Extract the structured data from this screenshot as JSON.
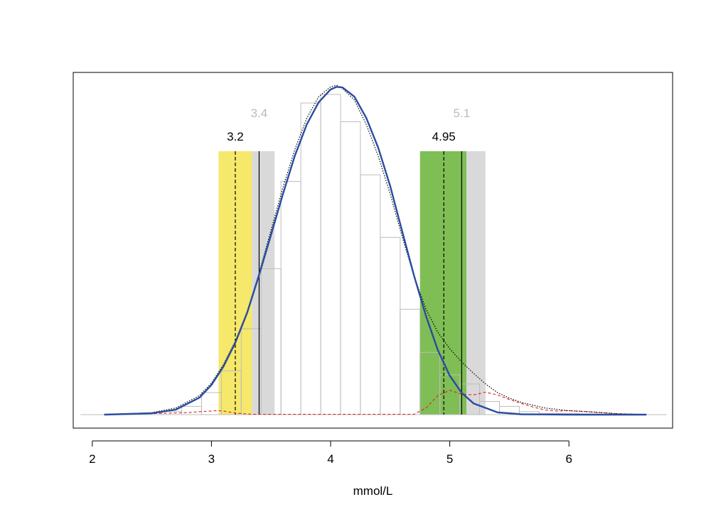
{
  "chart_data": {
    "type": "bar",
    "xlabel": "mmol/L",
    "xlim": [
      1.84,
      6.87
    ],
    "ylim": [
      0,
      1.0
    ],
    "x_ticks": [
      "2",
      "3",
      "4",
      "5",
      "6"
    ],
    "grid": false,
    "histogram": {
      "bin_width": 0.167,
      "bin_starts": [
        2.583,
        2.75,
        2.917,
        3.083,
        3.25,
        3.417,
        3.583,
        3.75,
        3.917,
        4.083,
        4.25,
        4.417,
        4.583,
        4.75,
        4.917,
        5.083,
        5.25,
        5.417,
        5.583,
        5.75,
        5.917,
        6.083,
        6.25
      ],
      "heights": [
        0.01,
        0.025,
        0.067,
        0.133,
        0.261,
        0.443,
        0.708,
        0.946,
        0.972,
        0.889,
        0.728,
        0.538,
        0.32,
        0.189,
        0.121,
        0.093,
        0.04,
        0.025,
        0.009,
        0.003,
        0.003,
        0.002,
        0.001
      ]
    },
    "series": [
      {
        "kind": "fitted-curve",
        "color": "#2a4ba0",
        "x": [
          2.1,
          2.5,
          2.7,
          2.9,
          3.0,
          3.1,
          3.2,
          3.3,
          3.4,
          3.5,
          3.6,
          3.7,
          3.8,
          3.9,
          4.0,
          4.05,
          4.1,
          4.2,
          4.3,
          4.4,
          4.5,
          4.6,
          4.7,
          4.8,
          4.9,
          5.0,
          5.1,
          5.2,
          5.4,
          5.6,
          6.0,
          6.65
        ],
        "y": [
          0.0,
          0.004,
          0.015,
          0.052,
          0.09,
          0.146,
          0.218,
          0.31,
          0.424,
          0.546,
          0.67,
          0.786,
          0.881,
          0.948,
          0.987,
          0.995,
          0.993,
          0.965,
          0.9,
          0.81,
          0.694,
          0.557,
          0.422,
          0.3,
          0.196,
          0.118,
          0.066,
          0.034,
          0.007,
          0.001,
          0.0,
          0.0
        ]
      },
      {
        "kind": "density-dotted",
        "color": "#000000",
        "x": [
          2.1,
          2.5,
          2.7,
          2.9,
          3.0,
          3.1,
          3.2,
          3.3,
          3.4,
          3.5,
          3.6,
          3.7,
          3.8,
          3.9,
          4.0,
          4.05,
          4.1,
          4.2,
          4.3,
          4.4,
          4.5,
          4.6,
          4.7,
          4.8,
          4.9,
          5.0,
          5.1,
          5.2,
          5.3,
          5.4,
          5.5,
          5.6,
          5.8,
          6.0,
          6.2,
          6.4,
          6.65
        ],
        "y": [
          0.0,
          0.006,
          0.02,
          0.058,
          0.096,
          0.152,
          0.223,
          0.313,
          0.43,
          0.56,
          0.69,
          0.805,
          0.9,
          0.965,
          0.995,
          1.0,
          0.99,
          0.955,
          0.88,
          0.785,
          0.67,
          0.54,
          0.42,
          0.32,
          0.25,
          0.2,
          0.16,
          0.125,
          0.093,
          0.067,
          0.05,
          0.037,
          0.02,
          0.012,
          0.008,
          0.003,
          0.0
        ]
      },
      {
        "kind": "component-dashed",
        "color": "#dd2222",
        "x": [
          2.1,
          2.6,
          2.8,
          2.9,
          3.0,
          3.05,
          3.1,
          3.15,
          3.25,
          3.35,
          4.7,
          4.8,
          4.9,
          5.0,
          5.1,
          5.2,
          5.3,
          5.4,
          5.5,
          5.6,
          5.7,
          5.8,
          5.9,
          6.0,
          6.2,
          6.4,
          6.65
        ],
        "y": [
          0.0,
          0.004,
          0.006,
          0.009,
          0.011,
          0.012,
          0.011,
          0.008,
          0.003,
          0.001,
          0.001,
          0.02,
          0.058,
          0.074,
          0.062,
          0.06,
          0.068,
          0.06,
          0.046,
          0.034,
          0.023,
          0.014,
          0.011,
          0.012,
          0.008,
          0.003,
          0.0
        ]
      }
    ],
    "shaded_bands": [
      {
        "x_start": 3.06,
        "x_end": 3.34,
        "color": "#f5e86a"
      },
      {
        "x_start": 3.34,
        "x_end": 3.53,
        "color": "#d9d9d9"
      },
      {
        "x_start": 4.75,
        "x_end": 5.14,
        "color": "#7fbe55"
      },
      {
        "x_start": 5.14,
        "x_end": 5.3,
        "color": "#d9d9d9"
      }
    ],
    "reference_lines": [
      {
        "x": 3.2,
        "style": "dashed"
      },
      {
        "x": 3.4,
        "style": "solid"
      },
      {
        "x": 4.95,
        "style": "dashed"
      },
      {
        "x": 5.1,
        "style": "solid"
      }
    ],
    "annotations": [
      {
        "text": "3.4",
        "x": 3.4,
        "color": "#bbbbbb",
        "level": "upper"
      },
      {
        "text": "3.2",
        "x": 3.2,
        "color": "#000000",
        "level": "lower"
      },
      {
        "text": "5.1",
        "x": 5.1,
        "color": "#bbbbbb",
        "level": "upper"
      },
      {
        "text": "4.95",
        "x": 4.95,
        "color": "#000000",
        "level": "lower"
      }
    ]
  }
}
